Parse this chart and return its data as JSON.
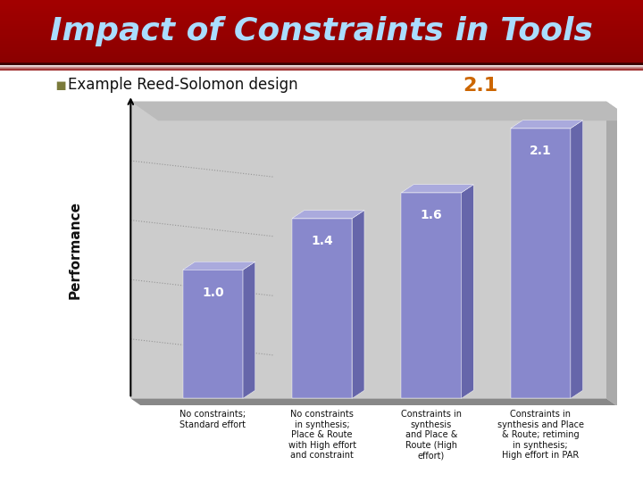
{
  "title": "Impact of Constraints in Tools",
  "title_color": "#aaddff",
  "title_bg_top": "#8b0000",
  "title_bg_bottom": "#5a0000",
  "subtitle": "Example Reed-Solomon design",
  "bullet_color": "#7a7a3a",
  "highlight_value": "2.1",
  "highlight_color": "#cc6600",
  "ylabel": "Performance",
  "values": [
    1.0,
    1.4,
    1.6,
    2.1
  ],
  "bar_face_color": "#8888cc",
  "bar_side_color": "#6666aa",
  "bar_top_color": "#aaaadd",
  "bg_color": "#ffffff",
  "wall_color": "#cccccc",
  "wall_side_color": "#aaaaaa",
  "floor_color": "#888888",
  "value_labels": [
    "1.0",
    "1.4",
    "1.6",
    "2.1"
  ],
  "labels": [
    "No constraints;\nStandard effort",
    "No constraints\nin synthesis;\nPlace & Route\nwith High effort\nand constraint",
    "Constraints in\nsynthesis\nand Place &\nRoute (High\neffort)",
    "Constraints in\nsynthesis and Place\n& Route; retiming\nin synthesis;\nHigh effort in PAR"
  ],
  "dotted_line_color": "#888888",
  "arrow_color": "#000000"
}
